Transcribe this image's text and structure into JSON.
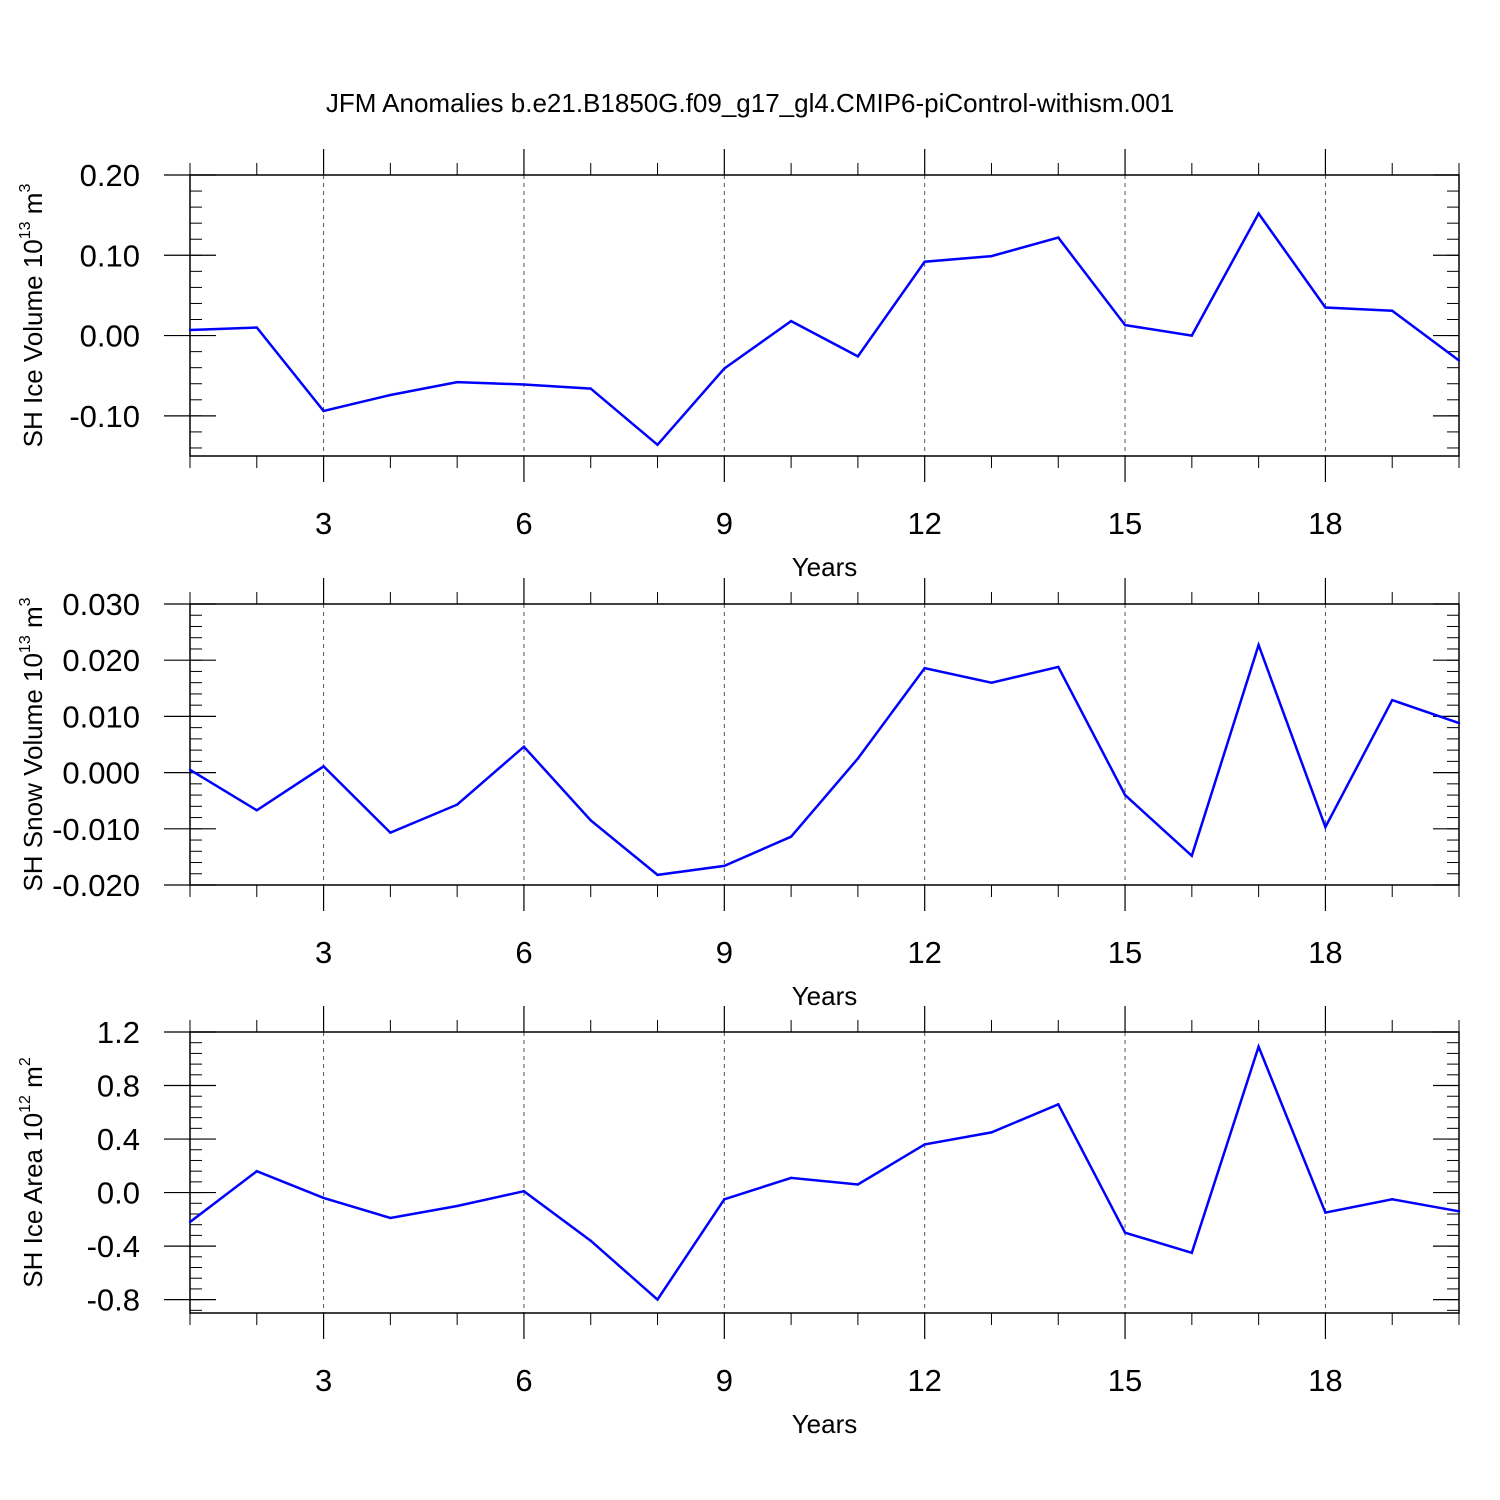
{
  "title": "JFM Anomalies b.e21.B1850G.f09_g17_gl4.CMIP6-piControl-withism.001",
  "colors": {
    "line": "#0000ff",
    "axes": "#000000",
    "grid": "#555555"
  },
  "chart_data": [
    {
      "type": "line",
      "panel": "sh-ice-volume",
      "ylabel": {
        "text": "SH Ice Volume 10",
        "sup": "13",
        "unit": " m",
        "unit_sup": "3"
      },
      "xlabel": "Years",
      "xlim": [
        1,
        20
      ],
      "ylim": [
        -0.15,
        0.2
      ],
      "xticks": [
        3,
        6,
        9,
        12,
        15,
        18
      ],
      "yticks": [
        -0.1,
        0.0,
        0.1,
        0.2
      ],
      "ytick_labels": [
        "-0.10",
        "0.00",
        "0.10",
        "0.20"
      ],
      "series": [
        {
          "name": "SH Ice Volume anomaly",
          "x": [
            1,
            2,
            3,
            4,
            5,
            6,
            7,
            8,
            9,
            10,
            11,
            12,
            13,
            14,
            15,
            16,
            17,
            18,
            19,
            20
          ],
          "values": [
            0.007,
            0.01,
            -0.094,
            -0.074,
            -0.058,
            -0.061,
            -0.066,
            -0.136,
            -0.041,
            0.018,
            -0.026,
            0.092,
            0.099,
            0.122,
            0.013,
            0.0,
            0.152,
            0.035,
            0.031,
            -0.031
          ]
        }
      ]
    },
    {
      "type": "line",
      "panel": "sh-snow-volume",
      "ylabel": {
        "text": "SH Snow Volume 10",
        "sup": "13",
        "unit": " m",
        "unit_sup": "3"
      },
      "xlabel": "Years",
      "xlim": [
        1,
        20
      ],
      "ylim": [
        -0.02,
        0.03
      ],
      "xticks": [
        3,
        6,
        9,
        12,
        15,
        18
      ],
      "yticks": [
        -0.02,
        -0.01,
        0.0,
        0.01,
        0.02,
        0.03
      ],
      "ytick_labels": [
        "-0.020",
        "-0.010",
        "0.000",
        "0.010",
        "0.020",
        "0.030"
      ],
      "series": [
        {
          "name": "SH Snow Volume anomaly",
          "x": [
            1,
            2,
            3,
            4,
            5,
            6,
            7,
            8,
            9,
            10,
            11,
            12,
            13,
            14,
            15,
            16,
            17,
            18,
            19,
            20
          ],
          "values": [
            0.0005,
            -0.0067,
            0.0011,
            -0.0107,
            -0.0057,
            0.0046,
            -0.0085,
            -0.0182,
            -0.0166,
            -0.0114,
            0.0025,
            0.0186,
            0.016,
            0.0188,
            -0.004,
            -0.0148,
            0.0227,
            -0.0097,
            0.0129,
            0.0088
          ]
        }
      ]
    },
    {
      "type": "line",
      "panel": "sh-ice-area",
      "ylabel": {
        "text": "SH Ice Area 10",
        "sup": "12",
        "unit": " m",
        "unit_sup": "2"
      },
      "xlabel": "Years",
      "xlim": [
        1,
        20
      ],
      "ylim": [
        -0.9,
        1.2
      ],
      "xticks": [
        3,
        6,
        9,
        12,
        15,
        18
      ],
      "yticks": [
        -0.8,
        -0.4,
        0.0,
        0.4,
        0.8,
        1.2
      ],
      "ytick_labels": [
        "-0.8",
        "-0.4",
        "0.0",
        "0.4",
        "0.8",
        "1.2"
      ],
      "series": [
        {
          "name": "SH Ice Area anomaly",
          "x": [
            1,
            2,
            3,
            4,
            5,
            6,
            7,
            8,
            9,
            10,
            11,
            12,
            13,
            14,
            15,
            16,
            17,
            18,
            19,
            20
          ],
          "values": [
            -0.22,
            0.16,
            -0.04,
            -0.19,
            -0.1,
            0.01,
            -0.36,
            -0.8,
            -0.05,
            0.11,
            0.06,
            0.36,
            0.45,
            0.66,
            -0.3,
            -0.45,
            1.09,
            -0.15,
            -0.05,
            -0.14
          ]
        }
      ]
    }
  ]
}
